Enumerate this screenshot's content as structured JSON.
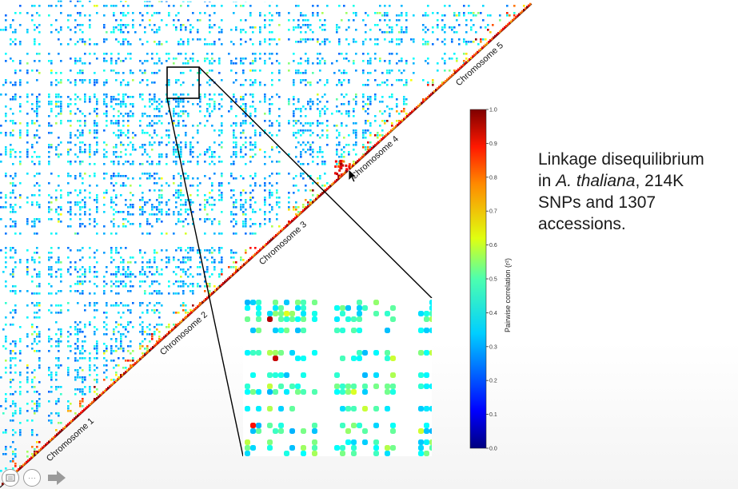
{
  "slide": {
    "caption": {
      "line1": "Linkage disequilibrium",
      "line2_italic": "A. thaliana",
      "line2_pre": "in ",
      "line2_post": ", 214K",
      "line3": "SNPs and 1307",
      "line4": "accessions."
    },
    "controls": {
      "menu_icon": "slide-menu-icon",
      "more_icon": "more-options-icon",
      "next_icon": "next-arrow-icon",
      "more_glyph": "···"
    }
  },
  "chart_data": [
    {
      "type": "heatmap",
      "title": "",
      "description_of_axes": "Genome-wide pairwise LD matrix, lower triangle, five chromosomes along the diagonal",
      "chromosomes": [
        "Chromosome 1",
        "Chromosome 2",
        "Chromosome 3",
        "Chromosome 4",
        "Chromosome 5"
      ],
      "colormap": "jet",
      "value_range": [
        0.0,
        1.0
      ]
    },
    {
      "type": "heatmap",
      "title": "",
      "description_of_axes": "Zoomed inset of a region of the matrix",
      "colormap": "jet"
    },
    {
      "type": "colorbar",
      "label": "Pairwise correlation (r²)",
      "ticks": [
        "0.0",
        "0.1",
        "0.2",
        "0.3",
        "0.4",
        "0.5",
        "0.6",
        "0.7",
        "0.8",
        "0.9",
        "1.0"
      ],
      "ylim": [
        0.0,
        1.0
      ]
    }
  ]
}
